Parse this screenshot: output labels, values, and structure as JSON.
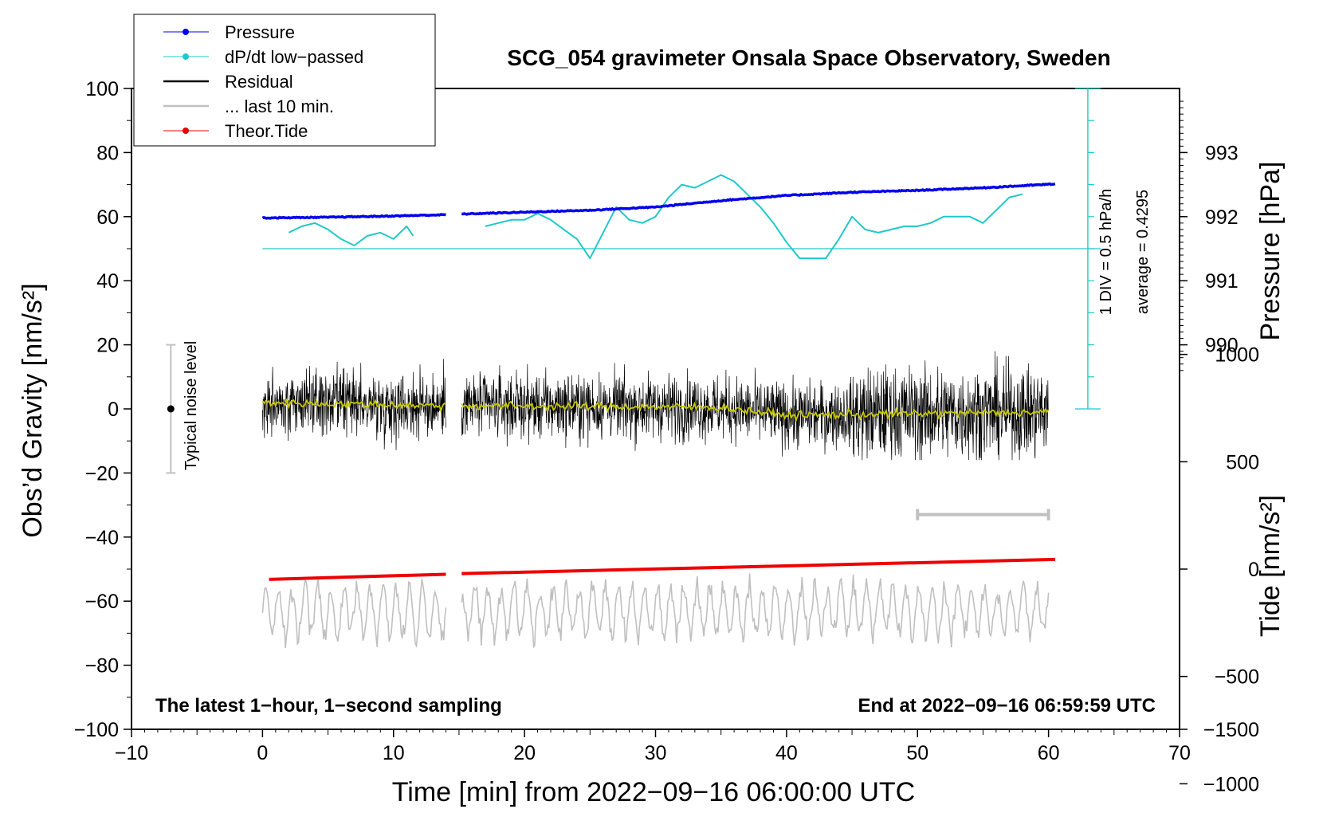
{
  "chart_data": {
    "type": "line",
    "title": "SCG_054 gravimeter Onsala Space Observatory, Sweden",
    "xlabel": "Time [min] from 2022−09−16 06:00:00 UTC",
    "ylabel_left": "Obs’d Gravity [nm/s²]",
    "ylabel_right_top": "Pressure [hPa]",
    "ylabel_right_bottom": "Tide [nm/s²]",
    "xlim": [
      -10,
      70
    ],
    "ylim": [
      -100,
      100
    ],
    "pressure_ylim": [
      989.5,
      993.9
    ],
    "tide_ylim": [
      -1500,
      1500
    ],
    "xticks": [
      "−10",
      "0",
      "10",
      "20",
      "30",
      "40",
      "50",
      "60",
      "70"
    ],
    "yticks": [
      "100",
      "80",
      "60",
      "40",
      "20",
      "0",
      "−20",
      "−40",
      "−60",
      "−80",
      "−100"
    ],
    "pressure_ticks": [
      "990",
      "991",
      "992",
      "993"
    ],
    "tide_ticks": [
      "1000",
      "500",
      "0",
      "−500",
      "−1000",
      "−1500"
    ],
    "legend": [
      "Pressure",
      "dP/dt low−passed",
      "Residual",
      "... last 10 min.",
      "Theor.Tide"
    ],
    "colors": {
      "pressure": "#0000ee",
      "dpdt": "#22c8c8",
      "residual": "#000000",
      "last10": "#c0c0c0",
      "tide": "#ee0000",
      "smooth": "#c8c800",
      "noise": "#c0c0c0"
    },
    "annotations": {
      "noise_label": "Typical noise level",
      "scale_div": "1 DIV = 0.5 hPa/h",
      "scale_avg": "average = 0.4295",
      "bottom_left": "The latest 1−hour, 1−second sampling",
      "bottom_right": "End at 2022−09−16 06:59:59 UTC"
    },
    "noise_bar": {
      "x": -7,
      "low": -20,
      "high": 20
    },
    "scale_bar": {
      "x": 63,
      "bottom": 0,
      "top": 100,
      "baseline": 50
    },
    "last10_bar": {
      "from": 50,
      "to": 60,
      "value": -33
    },
    "gap": [
      14,
      15.2
    ],
    "series": [
      {
        "name": "Pressure",
        "unit": "hPa",
        "x": [
          0,
          5,
          10,
          14,
          15.2,
          20,
          25,
          30,
          35,
          40,
          45,
          50,
          55,
          60.5
        ],
        "values": [
          991.98,
          991.99,
          992.01,
          992.03,
          992.04,
          992.07,
          992.1,
          992.15,
          992.25,
          992.33,
          992.38,
          992.41,
          992.45,
          992.51
        ]
      },
      {
        "name": "dP/dt low−passed",
        "unit": "gravity-axis",
        "x": [
          2,
          3,
          4,
          5,
          6,
          7,
          8,
          9,
          10,
          11,
          11.5,
          17,
          18,
          19,
          20,
          21,
          22,
          23,
          24,
          25,
          26,
          27,
          28,
          29,
          30,
          31,
          32,
          33,
          34,
          35,
          36,
          37,
          38,
          39,
          40,
          41,
          42,
          43,
          44,
          45,
          46,
          47,
          48,
          49,
          50,
          51,
          52,
          53,
          54,
          55,
          56,
          57,
          58
        ],
        "values": [
          55,
          57,
          58,
          56,
          53,
          51,
          54,
          55,
          53,
          57,
          54,
          57,
          58,
          59,
          59,
          61,
          59,
          56,
          53,
          47,
          55,
          63,
          59,
          58,
          60,
          66,
          70,
          69,
          71,
          73,
          71,
          67,
          63,
          58,
          52,
          47,
          47,
          47,
          53,
          60,
          56,
          55,
          56,
          57,
          57,
          58,
          60,
          60,
          60,
          58,
          62,
          66,
          67
        ]
      },
      {
        "name": "Theor.Tide",
        "unit": "nm/s²",
        "x": [
          0.5,
          14,
          15.2,
          25,
          35,
          45,
          55,
          60.5
        ],
        "values": [
          -80,
          -40,
          -35,
          -15,
          10,
          35,
          60,
          75
        ]
      },
      {
        "name": "Residual",
        "unit": "nm/s²",
        "x": [
          0,
          14,
          15.2,
          35,
          40,
          60
        ],
        "values": [
          2,
          1,
          1,
          0.5,
          -2,
          -1
        ],
        "noise_amplitude": 8
      },
      {
        "name": "... last 10 min.",
        "unit": "nm/s²",
        "x": [
          0,
          60
        ],
        "values": [
          -63,
          -63
        ],
        "oscillation_amplitude": 7
      }
    ]
  }
}
